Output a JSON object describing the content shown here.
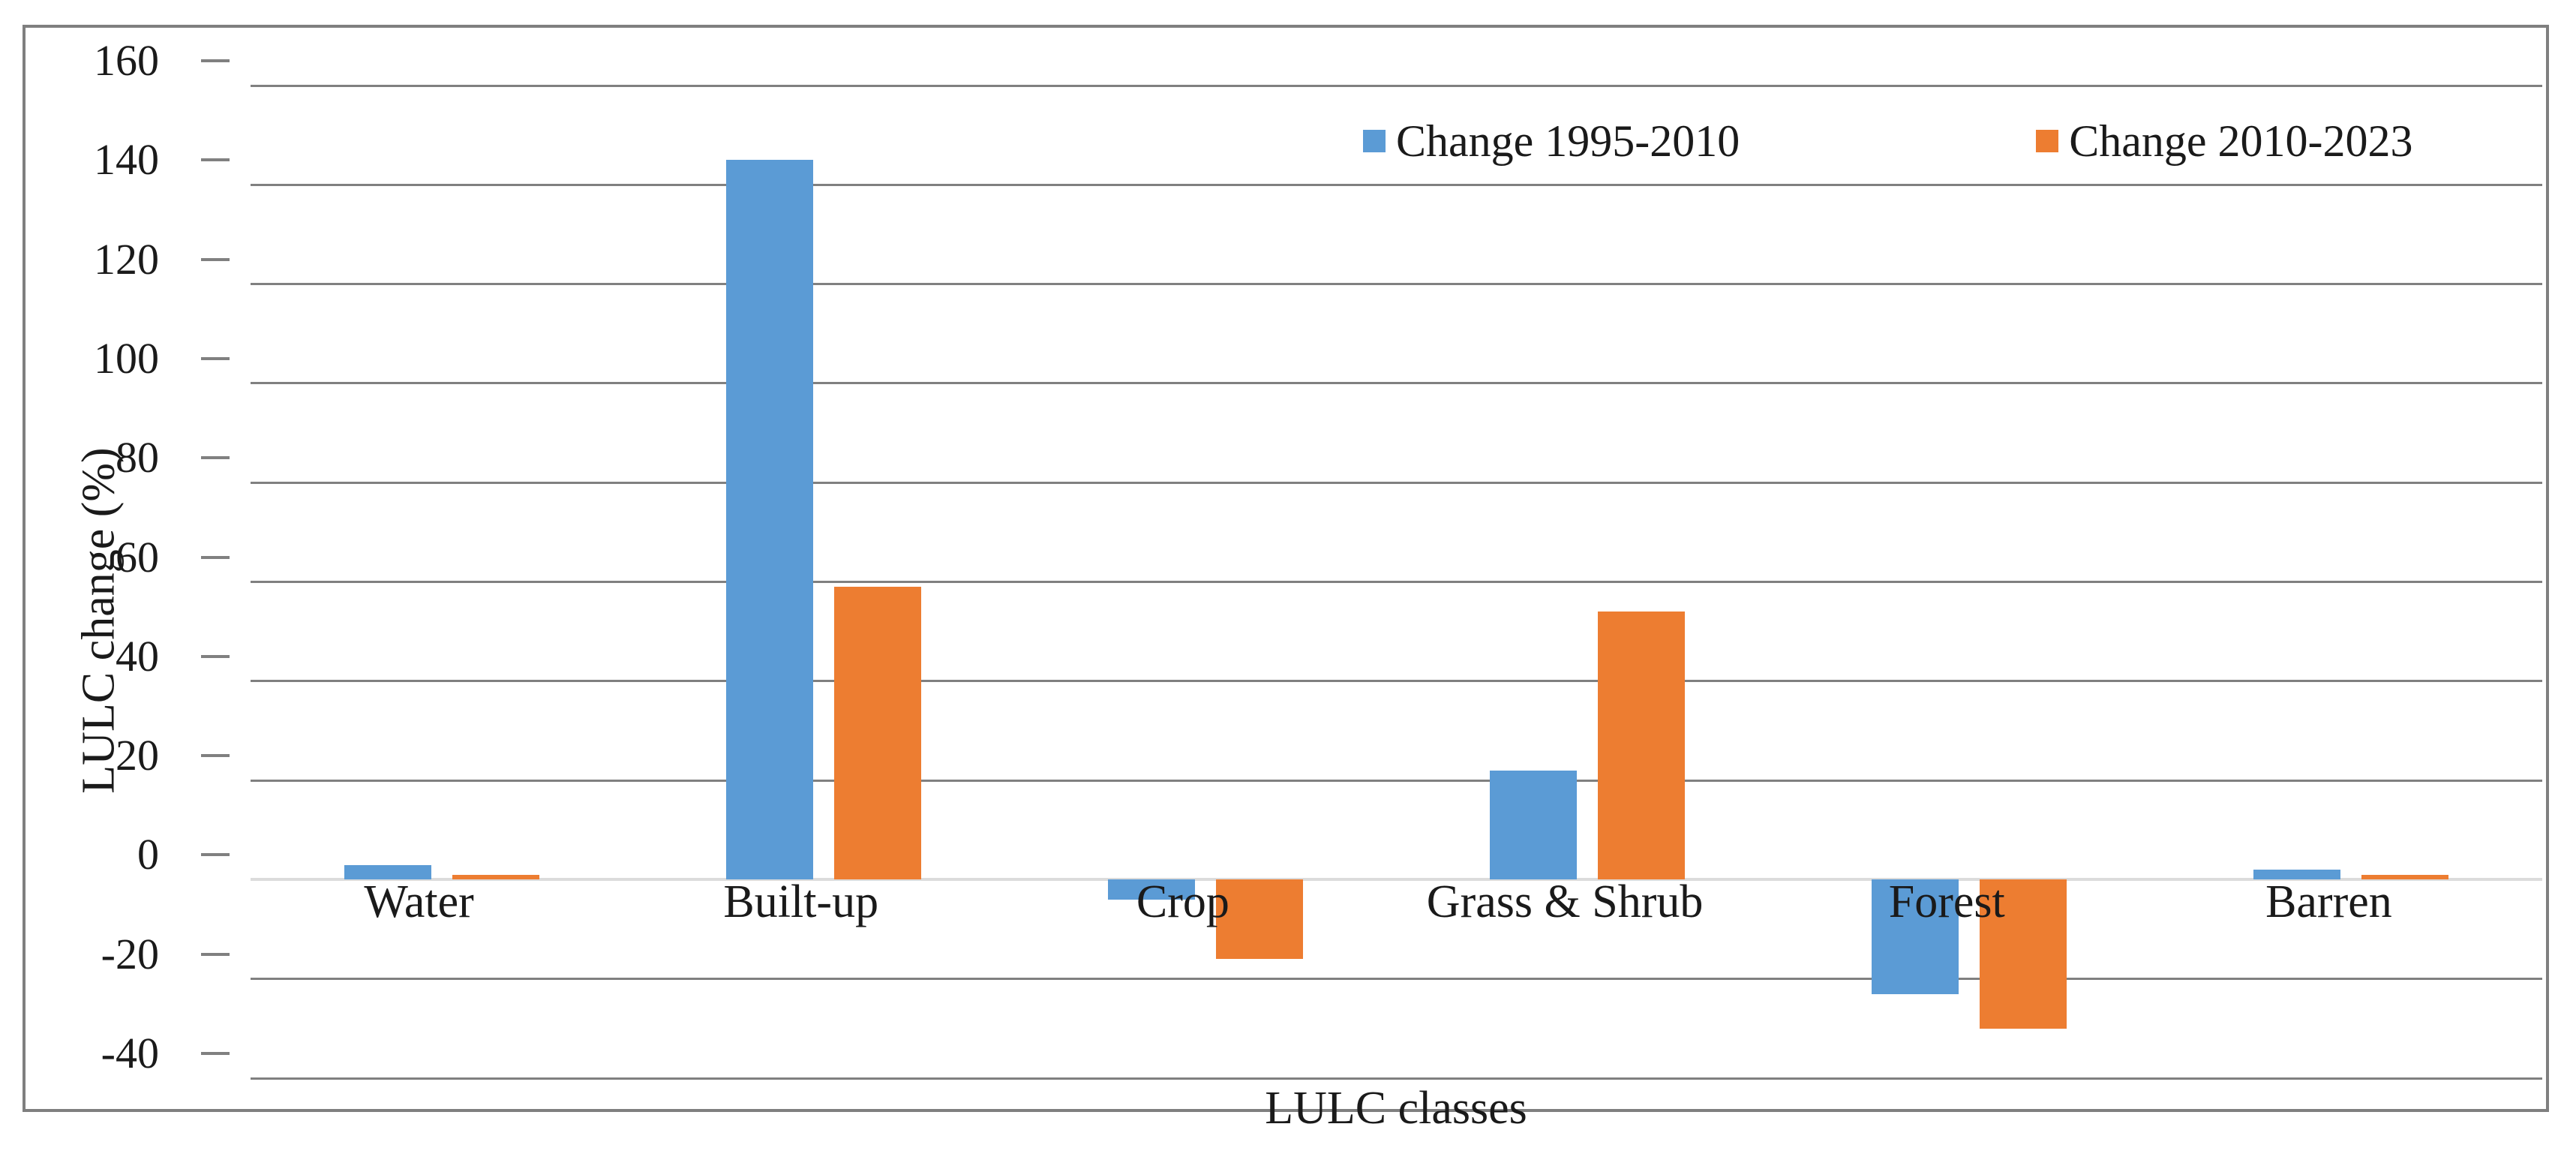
{
  "chart_data": {
    "type": "bar",
    "title": "",
    "categories": [
      "Water",
      "Built-up",
      "Crop",
      "Grass & Shrub",
      "Forest",
      "Barren"
    ],
    "series": [
      {
        "name": "Change 1995-2010",
        "color": "#5B9BD5",
        "values": [
          3,
          145,
          -4,
          22,
          -23,
          2
        ]
      },
      {
        "name": "Change 2010-2023",
        "color": "#ED7D31",
        "values": [
          1,
          59,
          -16,
          54,
          -30,
          1
        ]
      }
    ],
    "xlabel": "LULC classes",
    "ylabel": "LULC change (%)",
    "ylim": [
      -40,
      160
    ],
    "ytick_step": 20,
    "ytick_labels": [
      "160",
      "140",
      "120",
      "100",
      "80",
      "60",
      "40",
      "20",
      "0",
      "-20",
      "-40"
    ],
    "grid": true,
    "legend_position": "top-inside"
  },
  "styles": {
    "series1_color": "#5B9BD5",
    "series2_color": "#ED7D31",
    "gridline_color": "#808080",
    "zero_axis_color": "#DCDCDC",
    "frame_border_color": "#7F7F7F",
    "text_color": "#1a1a1a",
    "background_color": "#FFFFFF"
  }
}
